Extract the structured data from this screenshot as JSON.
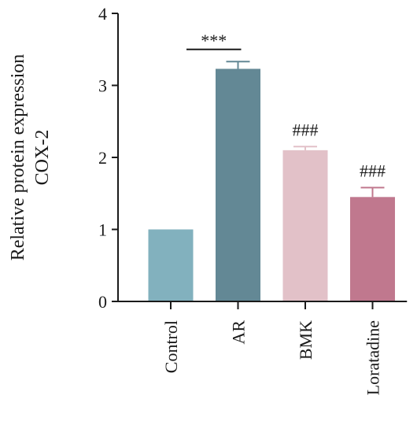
{
  "chart_data": {
    "type": "bar",
    "title": "",
    "ylabel_lines": [
      "Relative protein expression",
      "COX-2"
    ],
    "xlabel": "",
    "ylim": [
      0,
      4
    ],
    "yticks": [
      0,
      1,
      2,
      3,
      4
    ],
    "categories": [
      "Control",
      "AR",
      "BMK",
      "Loratadine"
    ],
    "values": [
      1.0,
      3.23,
      2.1,
      1.45
    ],
    "errors": [
      0.0,
      0.1,
      0.05,
      0.13
    ],
    "colors": [
      "#82b1be",
      "#638895",
      "#e2c1c8",
      "#c0788e"
    ],
    "annotations": [
      {
        "text": "***",
        "category_index": 1,
        "bracket_from": 0,
        "bracket_to": 1,
        "y": 3.5
      },
      {
        "text": "###",
        "category_index": 2,
        "y": 2.3
      },
      {
        "text": "###",
        "category_index": 3,
        "y": 1.73
      }
    ],
    "grid": false,
    "legend": "none"
  }
}
